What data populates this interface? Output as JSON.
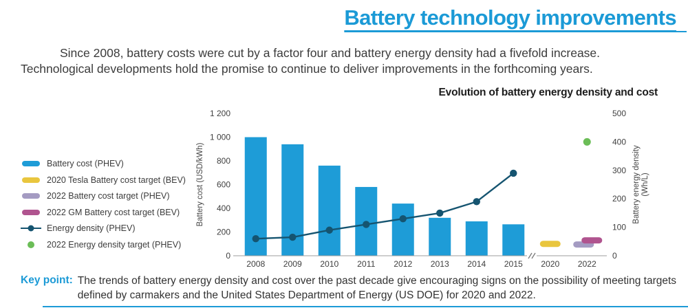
{
  "page": {
    "title": "Battery technology improvements",
    "intro": {
      "line1": "Since 2008, battery costs were cut by a factor four and battery energy density had a fivefold increase.",
      "line2": "Technological developments hold the promise to continue to deliver improvements in the forthcoming years."
    },
    "key_point": {
      "label": "Key point:",
      "text": "The trends of battery energy density and cost over the past decade give encouraging signs on the possibility of meeting targets defined by carmakers and the United States Department of Energy (US DOE) for 2020 and 2022."
    },
    "accent_color": "#1b9ad6"
  },
  "chart_data": {
    "type": "combo-bar-line",
    "title": "Evolution of battery energy density and cost",
    "ylabel_left": "Battery cost (USD/kWh)",
    "ylabel_right": [
      "Battery energy density",
      "(Wh/L)"
    ],
    "ylim_left": [
      0,
      1200
    ],
    "ylim_right": [
      0,
      500
    ],
    "yticks_left": [
      "0",
      "200",
      "400",
      "600",
      "800",
      "1 000",
      "1 200"
    ],
    "yticks_right": [
      "0",
      "100",
      "200",
      "300",
      "400",
      "500"
    ],
    "categories": [
      "2008",
      "2009",
      "2010",
      "2011",
      "2012",
      "2013",
      "2014",
      "2015",
      "2020",
      "2022"
    ],
    "axis_break_after": "2015",
    "grid": false,
    "legend_position": "left",
    "series": [
      {
        "name": "Battery cost (PHEV)",
        "type": "bar",
        "axis": "left",
        "color": "#1e9cd7",
        "x": [
          "2008",
          "2009",
          "2010",
          "2011",
          "2012",
          "2013",
          "2014",
          "2015"
        ],
        "values": [
          1000,
          940,
          760,
          580,
          440,
          320,
          290,
          265
        ]
      },
      {
        "name": "2020 Tesla Battery cost target (BEV)",
        "type": "target",
        "axis": "left",
        "color": "#e9c63e",
        "x": [
          "2020"
        ],
        "values": [
          100
        ]
      },
      {
        "name": "2022 Battery cost target (PHEV)",
        "type": "target",
        "axis": "left",
        "color": "#a49bc2",
        "x": [
          "2022"
        ],
        "values": [
          95
        ]
      },
      {
        "name": "2022 GM Battery cost target (BEV)",
        "type": "target",
        "axis": "left",
        "color": "#b0548f",
        "x": [
          "2022"
        ],
        "values": [
          130
        ]
      },
      {
        "name": "Energy density (PHEV)",
        "type": "line",
        "axis": "right",
        "color": "#155470",
        "x": [
          "2008",
          "2009",
          "2010",
          "2011",
          "2012",
          "2013",
          "2014",
          "2015"
        ],
        "values": [
          60,
          65,
          90,
          110,
          130,
          150,
          190,
          290
        ]
      },
      {
        "name": "2022 Energy density target (PHEV)",
        "type": "point",
        "axis": "right",
        "color": "#6bbd57",
        "x": [
          "2022"
        ],
        "values": [
          400
        ]
      }
    ]
  }
}
